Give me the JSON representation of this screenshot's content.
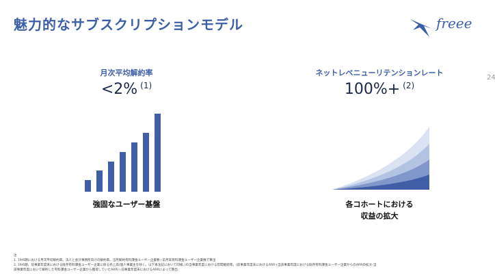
{
  "title": "魅力的なサブスクリプションモデル",
  "logo": {
    "text": "freee"
  },
  "page_number": "24",
  "left_panel": {
    "label": "月次平均解約率",
    "value": "<2%",
    "note": "(1)",
    "caption": "強固なユーザー基盤",
    "bar_levels": [
      0.15,
      0.27,
      0.39,
      0.51,
      0.63,
      0.75,
      1.0
    ]
  },
  "right_panel": {
    "label": "ネットレベニューリテンションレート",
    "value": "100%+",
    "note": "(2)",
    "caption_line1": "各コホートにおける",
    "caption_line2": "収益の拡大"
  },
  "colors": {
    "title": "#3d5fa8",
    "bar": "#3f5ea6",
    "cohort": [
      "#3f5ea6",
      "#7f97c9",
      "#b3c3e3",
      "#dbe3f2"
    ]
  },
  "footnotes": {
    "marker": "注",
    "line1": "1. 19/6期における月次平均解約率。法人と会計事務所向けの解約率。当月解約有料課金ユーザー企業数÷前月末有料課金ユーザー企業数で算出",
    "line2": "2. 19/6期。前事業年度末における既存有料課金ユーザー企業に係る売上高(個人事業主を除く。以下本注記において同様。)の当事業年度における年間継続率。(前事業年度末におけるARR+当該事業年度における既存有料課金ユーザー企業からのARRの拡大-当",
    "line3": "該事業年度において解約した有料課金ユーザー企業から獲得していたARR)÷前事業年度末におけるARRによって算出"
  }
}
